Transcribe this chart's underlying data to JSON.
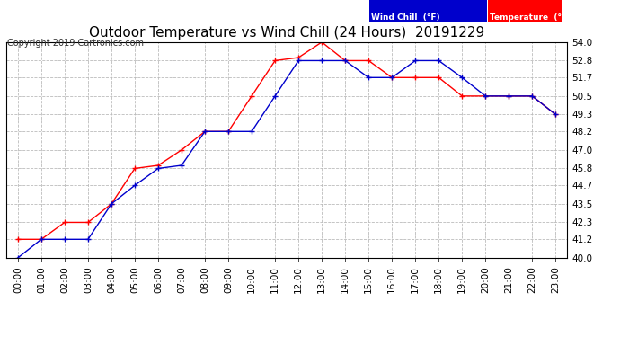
{
  "title": "Outdoor Temperature vs Wind Chill (24 Hours)  20191229",
  "copyright": "Copyright 2019 Cartronics.com",
  "ylim": [
    40.0,
    54.0
  ],
  "yticks": [
    40.0,
    41.2,
    42.3,
    43.5,
    44.7,
    45.8,
    47.0,
    48.2,
    49.3,
    50.5,
    51.7,
    52.8,
    54.0
  ],
  "hours": [
    "00:00",
    "01:00",
    "02:00",
    "03:00",
    "04:00",
    "05:00",
    "06:00",
    "07:00",
    "08:00",
    "09:00",
    "10:00",
    "11:00",
    "12:00",
    "13:00",
    "14:00",
    "15:00",
    "16:00",
    "17:00",
    "18:00",
    "19:00",
    "20:00",
    "21:00",
    "22:00",
    "23:00"
  ],
  "temperature": [
    41.2,
    41.2,
    42.3,
    42.3,
    43.5,
    45.8,
    46.0,
    47.0,
    48.2,
    48.2,
    50.5,
    52.8,
    53.0,
    54.0,
    52.8,
    52.8,
    51.7,
    51.7,
    51.7,
    50.5,
    50.5,
    50.5,
    50.5,
    49.3
  ],
  "wind_chill": [
    40.0,
    41.2,
    41.2,
    41.2,
    43.5,
    44.7,
    45.8,
    46.0,
    48.2,
    48.2,
    48.2,
    50.5,
    52.8,
    52.8,
    52.8,
    51.7,
    51.7,
    52.8,
    52.8,
    51.7,
    50.5,
    50.5,
    50.5,
    49.3
  ],
  "temp_color": "#ff0000",
  "wind_color": "#0000cc",
  "bg_color": "#ffffff",
  "grid_color": "#bbbbbb",
  "title_fontsize": 11,
  "tick_fontsize": 7.5,
  "copyright_fontsize": 7,
  "legend_wind_bg": "#0000cc",
  "legend_temp_bg": "#ff0000",
  "legend_text_color": "#ffffff",
  "legend_wind_label": "Wind Chill  (°F)",
  "legend_temp_label": "Temperature  (°F)"
}
